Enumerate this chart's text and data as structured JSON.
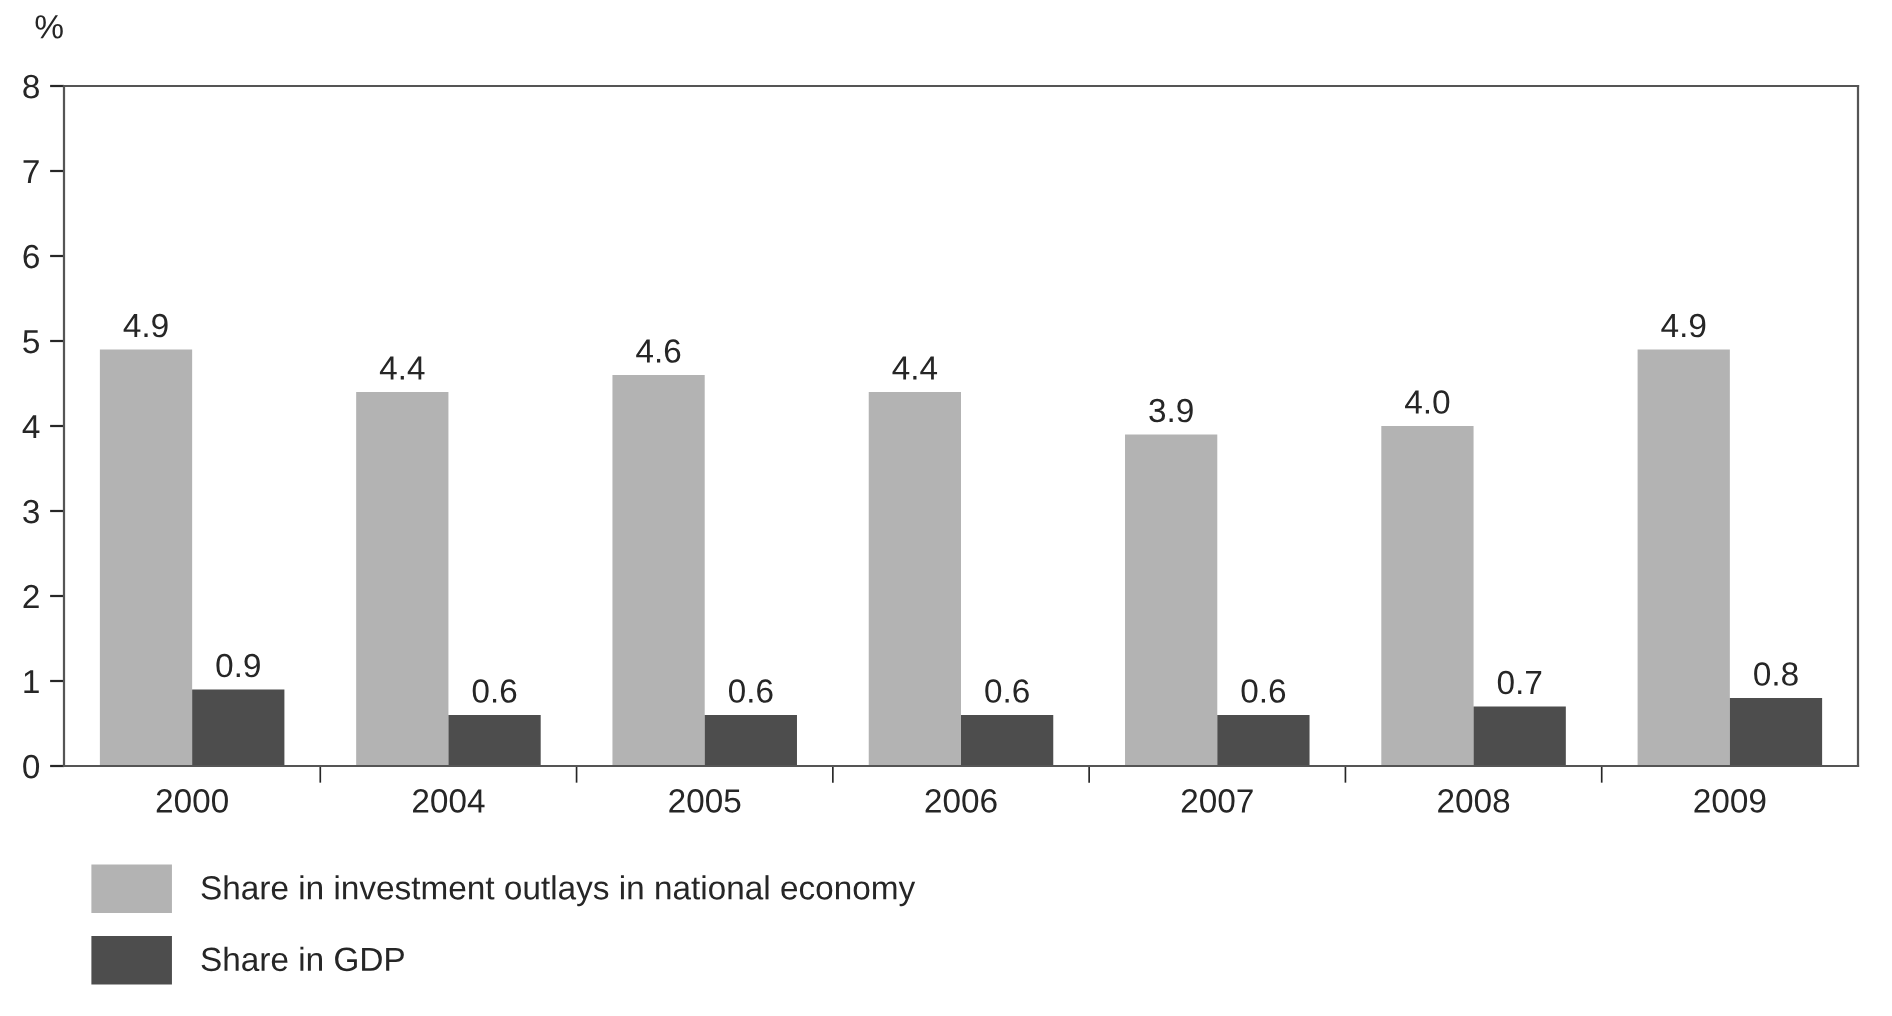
{
  "chart_data": {
    "type": "bar",
    "ylabel": "%",
    "categories": [
      "2000",
      "2004",
      "2005",
      "2006",
      "2007",
      "2008",
      "2009"
    ],
    "series": [
      {
        "name": "Share in investment outlays in national economy",
        "color": "#b3b3b3",
        "values": [
          4.9,
          4.4,
          4.6,
          4.4,
          3.9,
          4.0,
          4.9
        ],
        "value_labels": [
          "4.9",
          "4.4",
          "4.6",
          "4.4",
          "3.9",
          "4.0",
          "4.9"
        ]
      },
      {
        "name": "Share in GDP",
        "color": "#4d4d4d",
        "values": [
          0.9,
          0.6,
          0.6,
          0.6,
          0.6,
          0.7,
          0.8
        ],
        "value_labels": [
          "0.9",
          "0.6",
          "0.6",
          "0.6",
          "0.6",
          "0.7",
          "0.8"
        ]
      }
    ],
    "ylim": [
      0,
      8
    ],
    "yticks": [
      0,
      1,
      2,
      3,
      4,
      5,
      6,
      7,
      8
    ],
    "grid": false,
    "legend": "bottom"
  }
}
